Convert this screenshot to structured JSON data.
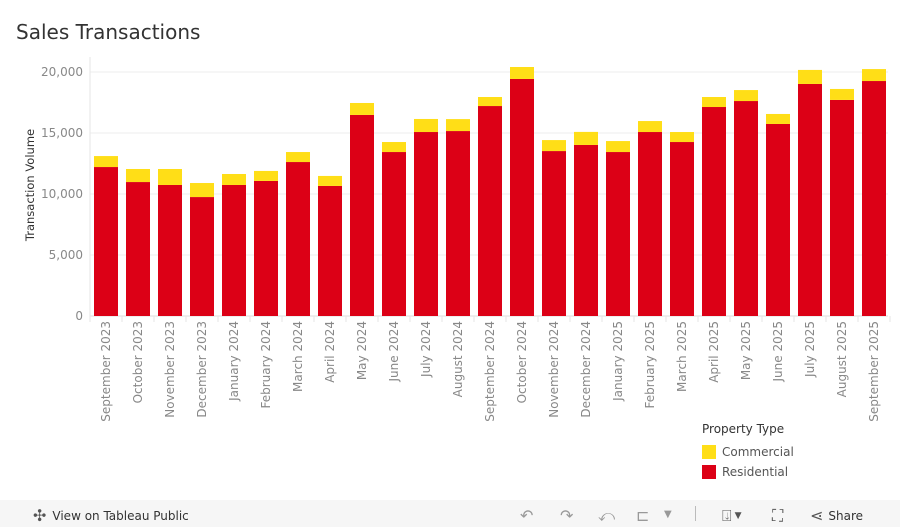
{
  "title": "Sales Transactions",
  "chart_data": {
    "type": "bar",
    "stacked": true,
    "title": "Sales Transactions",
    "xlabel": "",
    "ylabel": "Transaction Volume",
    "ylim": [
      0,
      21200
    ],
    "yticks": [
      0,
      5000,
      10000,
      15000,
      20000
    ],
    "ytick_labels": [
      "0",
      "5,000",
      "10,000",
      "15,000",
      "20,000"
    ],
    "grid": true,
    "legend_position": "bottom-right",
    "legend_title": "Property Type",
    "categories": [
      "September 2023",
      "October 2023",
      "November 2023",
      "December 2023",
      "January 2024",
      "February 2024",
      "March 2024",
      "April 2024",
      "May 2024",
      "June 2024",
      "July 2024",
      "August 2024",
      "September 2024",
      "October 2024",
      "November 2024",
      "December 2024",
      "January 2025",
      "February 2025",
      "March 2025",
      "April 2025",
      "May 2025",
      "June 2025",
      "July 2025",
      "August 2025",
      "September 2025"
    ],
    "series": [
      {
        "name": "Residential",
        "color": "#DC0016",
        "values": [
          12210,
          10980,
          10740,
          9750,
          10740,
          11070,
          12620,
          10660,
          16480,
          13440,
          15080,
          15160,
          17210,
          19430,
          13520,
          14020,
          13440,
          15080,
          14260,
          17130,
          17620,
          15740,
          19020,
          17710,
          19260
        ]
      },
      {
        "name": "Commercial",
        "color": "#FFDE17",
        "values": [
          900,
          1070,
          1310,
          1150,
          900,
          820,
          820,
          820,
          980,
          820,
          1070,
          980,
          740,
          980,
          900,
          1070,
          900,
          900,
          820,
          820,
          900,
          820,
          1150,
          900,
          980
        ]
      }
    ],
    "legend_order": [
      "Commercial",
      "Residential"
    ]
  },
  "toolbar": {
    "view_label": "View on Tableau Public",
    "share_label": "Share"
  }
}
